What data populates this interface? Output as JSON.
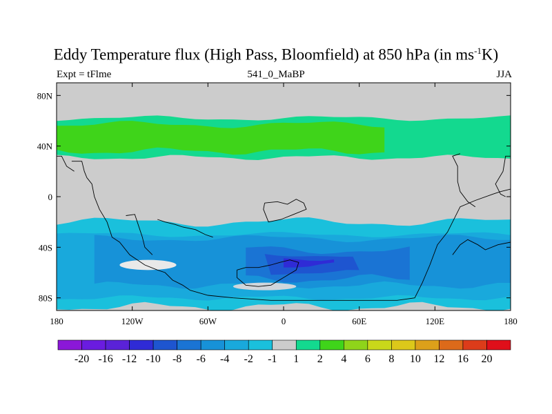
{
  "header": {
    "title_main": "Eddy Temperature flux (High Pass, Bloomfield) at 850 hPa (in ms",
    "title_sup": "-1",
    "title_end": "K)",
    "left_label": "Expt = tFlme",
    "center_label": "541_0_MaBP",
    "right_label": "JJA"
  },
  "chart_data": {
    "type": "heatmap",
    "title": "Eddy Temperature flux (High Pass, Bloomfield) at 850 hPa (in ms-1K)",
    "subtitle_left": "Expt = tFlme",
    "subtitle_center": "541_0_MaBP",
    "subtitle_right": "JJA",
    "xlim": [
      -180,
      180
    ],
    "ylim": [
      -90,
      90
    ],
    "x_ticks": [
      {
        "value": -180,
        "label": "180"
      },
      {
        "value": -120,
        "label": "120W"
      },
      {
        "value": -60,
        "label": "60W"
      },
      {
        "value": 0,
        "label": "0"
      },
      {
        "value": 60,
        "label": "60E"
      },
      {
        "value": 120,
        "label": "120E"
      },
      {
        "value": 180,
        "label": "180"
      }
    ],
    "y_ticks": [
      {
        "value": 80,
        "label": "80N"
      },
      {
        "value": 40,
        "label": "40N"
      },
      {
        "value": 0,
        "label": "0"
      },
      {
        "value": -40,
        "label": "40S"
      },
      {
        "value": -80,
        "label": "80S"
      }
    ],
    "colorbar": {
      "labels": [
        "-20",
        "-16",
        "-12",
        "-10",
        "-8",
        "-6",
        "-4",
        "-2",
        "-1",
        "1",
        "2",
        "4",
        "6",
        "8",
        "10",
        "12",
        "16",
        "20"
      ],
      "colors": [
        "#8b18d8",
        "#6a1ce0",
        "#5a22d8",
        "#2f2bd6",
        "#1e55d0",
        "#1a74d4",
        "#1792d8",
        "#19a9dc",
        "#1ac0dc",
        "#cccccc",
        "#13d98f",
        "#3fd41a",
        "#8fd41a",
        "#c9d81a",
        "#dcc81a",
        "#dca01a",
        "#dc6a1a",
        "#dc3c1a",
        "#e00f1a"
      ]
    },
    "fields": [
      {
        "name": "nh_band_weak",
        "color": "#13d98f",
        "lon_range": [
          -180,
          180
        ],
        "lat_range": [
          31,
          62
        ],
        "level": "1 to 2"
      },
      {
        "name": "nh_band_core",
        "color": "#3fd41a",
        "lon_range": [
          -180,
          80
        ],
        "lat_range": [
          36,
          57
        ],
        "level": "2 to 4"
      },
      {
        "name": "sh_band_weak",
        "color": "#1ac0dc",
        "lon_range": [
          -180,
          180
        ],
        "lat_range": [
          -87,
          -20
        ],
        "level": "-2 to -1"
      },
      {
        "name": "sh_band_mid",
        "color": "#19a9dc",
        "lon_range": [
          -180,
          180
        ],
        "lat_range": [
          -80,
          -30
        ],
        "level": "-4 to -2"
      },
      {
        "name": "sh_band_strong",
        "color": "#1792d8",
        "lon_range": [
          -150,
          180
        ],
        "lat_range": [
          -70,
          -33
        ],
        "level": "-6 to -4"
      },
      {
        "name": "sh_core_1",
        "color": "#1a74d4",
        "lon_range": [
          -30,
          100
        ],
        "lat_range": [
          -65,
          -42
        ],
        "level": "-8 to -6"
      },
      {
        "name": "sh_core_2",
        "color": "#1e55d0",
        "lon_range": [
          -15,
          60
        ],
        "lat_range": [
          -60,
          -46
        ],
        "level": "-10 to -8"
      },
      {
        "name": "sh_core_3",
        "color": "#2f2bd6",
        "lon_range": [
          0,
          40
        ],
        "lat_range": [
          -55,
          -48
        ],
        "level": "-12 to -10"
      }
    ]
  }
}
